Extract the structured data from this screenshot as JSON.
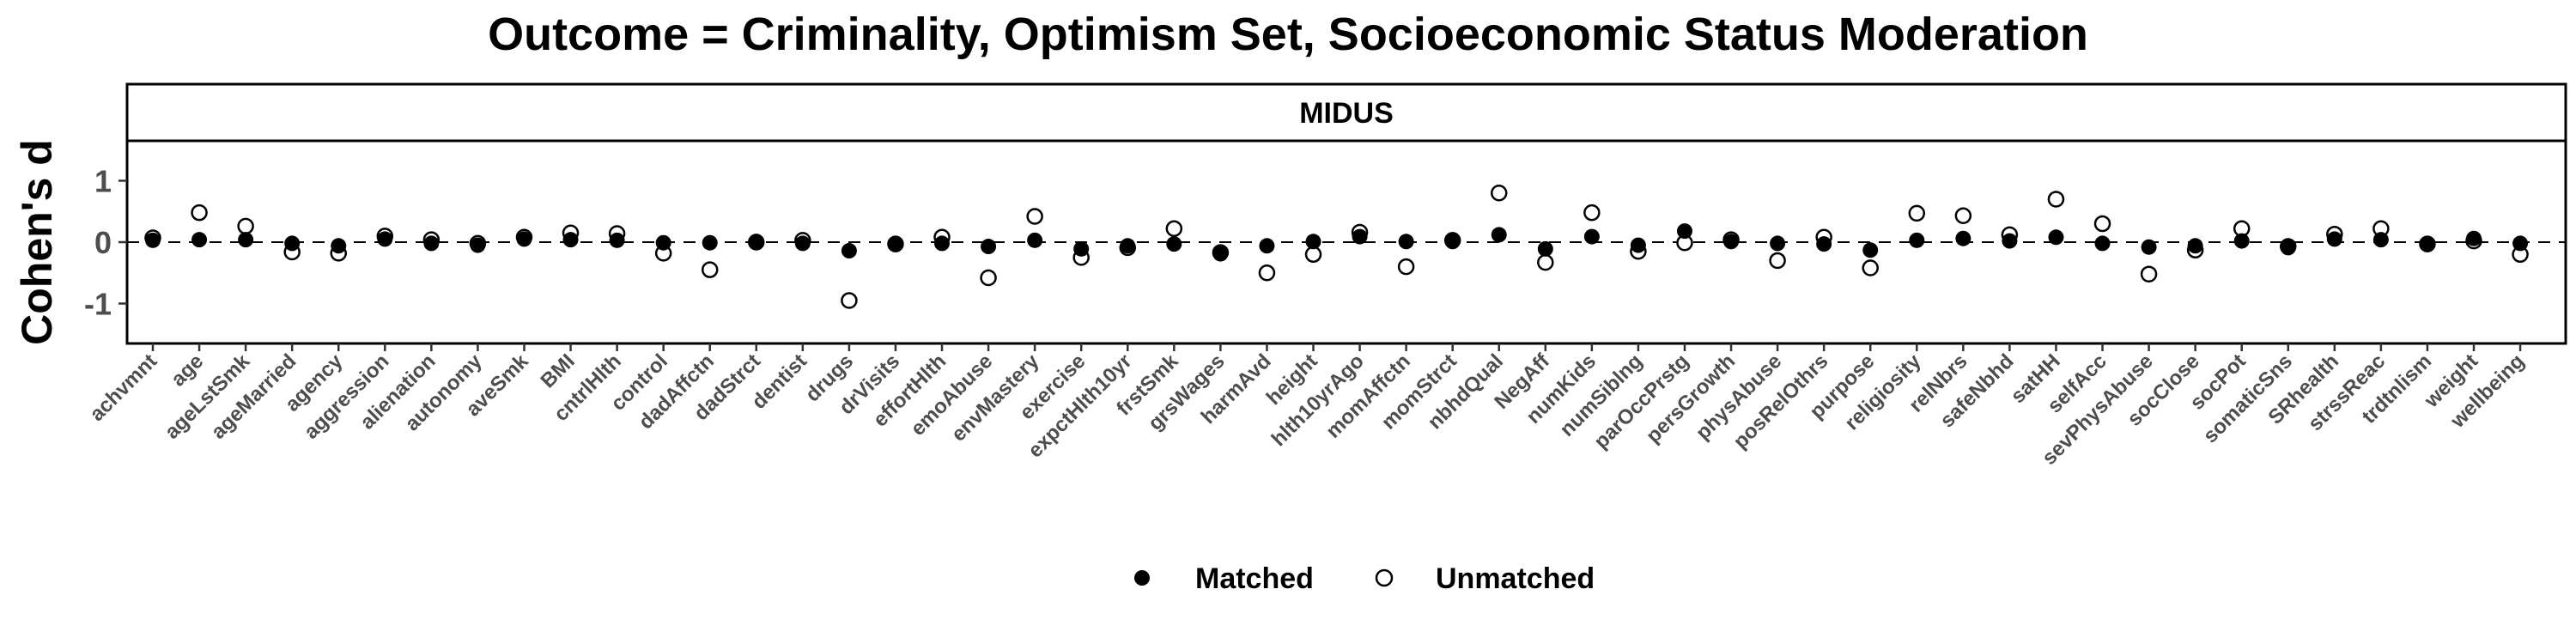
{
  "chart_data": {
    "type": "scatter",
    "title": "Outcome = Criminality, Optimism Set, Socioeconomic Status Moderation",
    "facet": "MIDUS",
    "xlabel": "",
    "ylabel": "Cohen's d",
    "ylim": [
      -1.65,
      1.65
    ],
    "yticks": [
      -1,
      0,
      1
    ],
    "reference_line": 0,
    "grid": false,
    "legend_position": "bottom",
    "categories": [
      "achvmnt",
      "age",
      "ageLstSmk",
      "ageMarried",
      "agency",
      "aggression",
      "alienation",
      "autonomy",
      "aveSmk",
      "BMI",
      "cntrlHlth",
      "control",
      "dadAffctn",
      "dadStrct",
      "dentist",
      "drugs",
      "drVisits",
      "effortHlth",
      "emoAbuse",
      "envMastery",
      "exercise",
      "expctHlth10yr",
      "frstSmk",
      "grsWages",
      "harmAvd",
      "height",
      "hlth10yrAgo",
      "momAffctn",
      "momStrct",
      "nbhdQual",
      "NegAff",
      "numKids",
      "numSiblng",
      "parOccPrstg",
      "persGrowth",
      "physAbuse",
      "posRelOthrs",
      "purpose",
      "religiosity",
      "relNbrs",
      "safeNbhd",
      "satHH",
      "selfAcc",
      "sevPhysAbuse",
      "socClose",
      "socPot",
      "somaticSns",
      "SRhealth",
      "strssReac",
      "trdtnlism",
      "weight",
      "wellbeing"
    ],
    "series": [
      {
        "name": "Matched",
        "marker": "filled-circle",
        "color": "#000000",
        "values": [
          0.03,
          0.04,
          0.04,
          -0.02,
          -0.06,
          0.05,
          -0.02,
          -0.05,
          0.05,
          0.04,
          0.03,
          -0.01,
          -0.01,
          0.01,
          -0.02,
          -0.14,
          -0.04,
          -0.02,
          -0.07,
          0.03,
          -0.11,
          -0.06,
          -0.03,
          -0.19,
          -0.06,
          0.01,
          0.09,
          0.01,
          0.01,
          0.12,
          -0.11,
          0.09,
          -0.05,
          0.18,
          0.01,
          -0.02,
          -0.03,
          -0.13,
          0.03,
          0.06,
          0.02,
          0.08,
          -0.02,
          -0.08,
          -0.06,
          0.02,
          -0.09,
          0.05,
          0.04,
          -0.04,
          0.06,
          -0.02
        ]
      },
      {
        "name": "Unmatched",
        "marker": "open-circle",
        "color": "#000000",
        "values": [
          0.07,
          0.48,
          0.26,
          -0.16,
          -0.18,
          0.1,
          0.04,
          -0.02,
          0.08,
          0.15,
          0.14,
          -0.18,
          -0.45,
          0.0,
          0.03,
          -0.95,
          -0.03,
          0.08,
          -0.58,
          0.42,
          -0.25,
          -0.09,
          0.22,
          -0.17,
          -0.5,
          -0.2,
          0.16,
          -0.4,
          0.03,
          0.8,
          -0.33,
          0.48,
          -0.15,
          -0.01,
          0.04,
          -0.3,
          0.08,
          -0.42,
          0.47,
          0.43,
          0.12,
          0.7,
          0.3,
          -0.52,
          -0.13,
          0.22,
          -0.07,
          0.13,
          0.22,
          -0.03,
          0.02,
          -0.2
        ]
      }
    ],
    "legend": {
      "position": "bottom",
      "entries": [
        "Matched",
        "Unmatched"
      ]
    }
  }
}
